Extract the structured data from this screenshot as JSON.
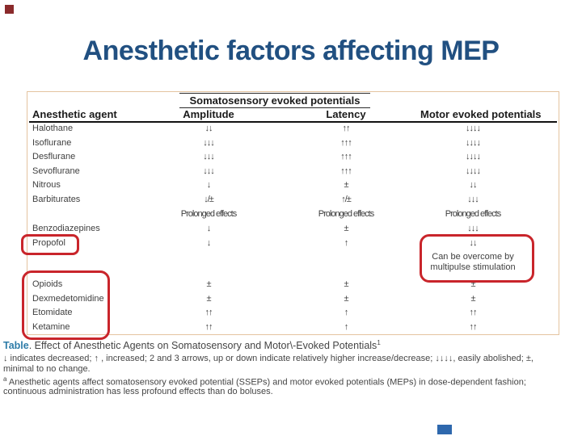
{
  "slide": {
    "title": "Anesthetic factors affecting MEP",
    "accent_colors": {
      "title_blue": "#215081",
      "annotation_red": "#c9252b",
      "corner_red_square": "#8a2a2b",
      "bottom_blue_square": "#2e68ad",
      "table_border_tan": "#e4c4a0",
      "footnote_label_blue": "#2e7ca8"
    }
  },
  "table": {
    "headers": {
      "agent": "Anesthetic agent",
      "spanner": "Somatosensory evoked potentials",
      "amplitude": "Amplitude",
      "latency": "Latency",
      "mep": "Motor evoked potentials"
    },
    "rows": [
      {
        "agent": "Halothane",
        "amplitude": "↓↓",
        "latency": "↑↑",
        "mep": "↓↓↓↓"
      },
      {
        "agent": "Isoflurane",
        "amplitude": "↓↓↓",
        "latency": "↑↑↑",
        "mep": "↓↓↓↓"
      },
      {
        "agent": "Desflurane",
        "amplitude": "↓↓↓",
        "latency": "↑↑↑",
        "mep": "↓↓↓↓"
      },
      {
        "agent": "Sevoflurane",
        "amplitude": "↓↓↓",
        "latency": "↑↑↑",
        "mep": "↓↓↓↓"
      },
      {
        "agent": "Nitrous",
        "amplitude": "↓",
        "latency": "±",
        "mep": "↓↓"
      },
      {
        "agent": "Barbiturates",
        "amplitude": "↓/±",
        "latency": "↑/±",
        "mep": "↓↓↓"
      },
      {
        "agent": "",
        "amplitude": "Prolonged effects",
        "latency": "Prolonged effects",
        "mep": "Prolonged effects"
      },
      {
        "agent": "Benzodiazepines",
        "amplitude": "↓",
        "latency": "±",
        "mep": "↓↓↓"
      },
      {
        "agent": "Propofol",
        "amplitude": "↓",
        "latency": "↑",
        "mep": "↓↓"
      },
      {
        "agent": "Opioids",
        "amplitude": "±",
        "latency": "±",
        "mep": "±"
      },
      {
        "agent": "Dexmedetomidine",
        "amplitude": "±",
        "latency": "±",
        "mep": "±"
      },
      {
        "agent": "Etomidate",
        "amplitude": "↑↑",
        "latency": "↑",
        "mep": "↑↑"
      },
      {
        "agent": "Ketamine",
        "amplitude": "↑↑",
        "latency": "↑",
        "mep": "↑↑"
      }
    ],
    "mep_note": "Can be overcome by multipulse stimulation"
  },
  "footnote": {
    "label": "Table",
    "caption_rest": ".  Effect of Anesthetic Agents on Somatosensory and Motor\\-Evoked Potentials",
    "caption_sup": "1",
    "line2": "↓ indicates decreased; ↑ , increased; 2 and 3 arrows, up or down indicate relatively higher increase/decrease; ↓↓↓↓, easily abolished; ±,",
    "line3": "minimal to no change.",
    "note_sup": "a",
    "note_text": " Anesthetic agents affect somatosensory evoked potential (SSEPs) and motor evoked potentials (MEPs) in dose-dependent fashion;",
    "note_text2": "continuous administration has less profound effects than do boluses."
  }
}
